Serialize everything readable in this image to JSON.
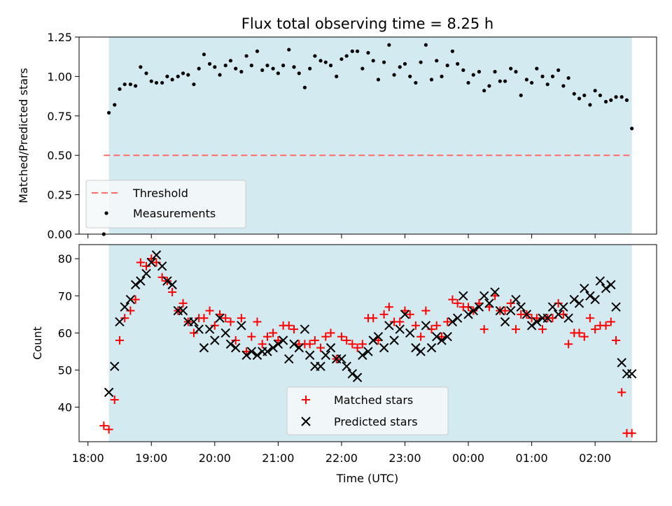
{
  "chart_data": [
    {
      "type": "scatter",
      "title": "Flux total observing time = 8.25 h",
      "ylabel": "Matched/Predicted stars",
      "ylim": [
        0.0,
        1.25
      ],
      "yticks": [
        "0.00",
        "0.25",
        "0.50",
        "0.75",
        "1.00",
        "1.25"
      ],
      "xlim": [
        17.86,
        26.97
      ],
      "grid": false,
      "legend_position": "lower-left",
      "observing_window": {
        "start": 18.33,
        "end": 26.58,
        "color": "#d3eaf0"
      },
      "threshold": {
        "name": "Threshold",
        "value": 0.5,
        "x_start": 18.25,
        "x_end": 26.58,
        "color": "#ff6b6b"
      },
      "series": [
        {
          "name": "Measurements",
          "color": "#000000",
          "x": [
            18.25,
            18.33,
            18.42,
            18.5,
            18.58,
            18.67,
            18.75,
            18.83,
            18.92,
            19.0,
            19.08,
            19.17,
            19.25,
            19.33,
            19.42,
            19.5,
            19.58,
            19.67,
            19.75,
            19.83,
            19.92,
            20.0,
            20.08,
            20.17,
            20.25,
            20.33,
            20.42,
            20.5,
            20.58,
            20.67,
            20.75,
            20.83,
            20.92,
            21.0,
            21.08,
            21.17,
            21.25,
            21.33,
            21.42,
            21.5,
            21.58,
            21.67,
            21.75,
            21.83,
            21.92,
            22.0,
            22.08,
            22.17,
            22.25,
            22.33,
            22.42,
            22.5,
            22.58,
            22.67,
            22.75,
            22.83,
            22.92,
            23.0,
            23.08,
            23.17,
            23.25,
            23.33,
            23.42,
            23.5,
            23.58,
            23.67,
            23.75,
            23.83,
            23.92,
            24.0,
            24.08,
            24.17,
            24.25,
            24.33,
            24.42,
            24.5,
            24.58,
            24.67,
            24.75,
            24.83,
            24.92,
            25.0,
            25.08,
            25.17,
            25.25,
            25.33,
            25.42,
            25.5,
            25.58,
            25.67,
            25.75,
            25.83,
            25.92,
            26.0,
            26.08,
            26.17,
            26.25,
            26.33,
            26.42,
            26.5,
            26.58
          ],
          "y": [
            0.0,
            0.77,
            0.82,
            0.92,
            0.95,
            0.95,
            0.94,
            1.06,
            1.02,
            0.97,
            0.96,
            0.96,
            1.0,
            0.98,
            1.0,
            1.02,
            1.01,
            0.95,
            1.05,
            1.14,
            1.08,
            1.06,
            1.01,
            1.07,
            1.1,
            1.05,
            1.03,
            1.13,
            1.07,
            1.16,
            1.04,
            1.07,
            1.05,
            1.02,
            1.07,
            1.17,
            1.06,
            1.02,
            0.93,
            1.05,
            1.13,
            1.1,
            1.09,
            1.07,
            1.0,
            1.11,
            1.13,
            1.16,
            1.16,
            1.05,
            1.15,
            1.1,
            0.98,
            1.09,
            1.2,
            1.01,
            1.06,
            1.08,
            1.0,
            0.96,
            1.09,
            1.2,
            0.98,
            1.1,
            1.0,
            1.07,
            1.16,
            1.08,
            1.04,
            0.96,
            1.01,
            1.03,
            0.91,
            0.94,
            1.03,
            0.97,
            0.97,
            1.05,
            1.03,
            0.88,
            0.98,
            0.96,
            1.05,
            1.0,
            0.95,
            1.0,
            1.04,
            0.94,
            0.99,
            0.89,
            0.86,
            0.88,
            0.82,
            0.91,
            0.88,
            0.84,
            0.85,
            0.87,
            0.87,
            0.85,
            0.67
          ]
        }
      ]
    },
    {
      "type": "scatter",
      "xlabel": "Time (UTC)",
      "ylabel": "Count",
      "ylim": [
        30.7,
        83.8
      ],
      "yticks": [
        "40",
        "50",
        "60",
        "70",
        "80"
      ],
      "xlim": [
        17.86,
        26.97
      ],
      "xticks": [
        "18:00",
        "19:00",
        "20:00",
        "21:00",
        "22:00",
        "23:00",
        "00:00",
        "01:00",
        "02:00"
      ],
      "grid": false,
      "legend_position": "lower-center",
      "observing_window": {
        "start": 18.33,
        "end": 26.58,
        "color": "#d3eaf0"
      },
      "series": [
        {
          "name": "Matched stars",
          "marker": "+",
          "color": "#ff0000",
          "x": [
            18.25,
            18.33,
            18.42,
            18.5,
            18.58,
            18.67,
            18.75,
            18.83,
            18.92,
            19.0,
            19.08,
            19.17,
            19.25,
            19.33,
            19.42,
            19.5,
            19.58,
            19.67,
            19.75,
            19.83,
            19.92,
            20.0,
            20.08,
            20.17,
            20.25,
            20.33,
            20.42,
            20.5,
            20.58,
            20.67,
            20.75,
            20.83,
            20.92,
            21.0,
            21.08,
            21.17,
            21.25,
            21.33,
            21.42,
            21.5,
            21.58,
            21.67,
            21.75,
            21.83,
            21.92,
            22.0,
            22.08,
            22.17,
            22.25,
            22.33,
            22.42,
            22.5,
            22.58,
            22.67,
            22.75,
            22.83,
            22.92,
            23.0,
            23.08,
            23.17,
            23.25,
            23.33,
            23.42,
            23.5,
            23.58,
            23.67,
            23.75,
            23.83,
            23.92,
            24.0,
            24.08,
            24.17,
            24.25,
            24.33,
            24.42,
            24.5,
            24.58,
            24.67,
            24.75,
            24.83,
            24.92,
            25.0,
            25.08,
            25.17,
            25.25,
            25.33,
            25.42,
            25.5,
            25.58,
            25.67,
            25.75,
            25.83,
            25.92,
            26.0,
            26.08,
            26.17,
            26.25,
            26.33,
            26.42,
            26.5,
            26.58
          ],
          "y": [
            35,
            34,
            42,
            58,
            64,
            66,
            69,
            79,
            78,
            80,
            79,
            75,
            74,
            71,
            66,
            68,
            63,
            60,
            64,
            64,
            66,
            62,
            65,
            64,
            63,
            58,
            64,
            55,
            59,
            63,
            57,
            59,
            60,
            58,
            62,
            62,
            61,
            57,
            57,
            57,
            58,
            56,
            59,
            60,
            53,
            59,
            58,
            57,
            56,
            57,
            64,
            64,
            58,
            65,
            67,
            63,
            63,
            66,
            65,
            62,
            59,
            66,
            61,
            62,
            59,
            63,
            69,
            68,
            67,
            67,
            66,
            68,
            61,
            67,
            70,
            66,
            66,
            68,
            61,
            65,
            65,
            64,
            64,
            61,
            64,
            64,
            68,
            65,
            57,
            60,
            60,
            59,
            64,
            61,
            62,
            62,
            63,
            58,
            44,
            33,
            33
          ]
        },
        {
          "name": "Predicted stars",
          "marker": "x",
          "color": "#000000",
          "x": [
            18.33,
            18.42,
            18.5,
            18.58,
            18.67,
            18.75,
            18.83,
            18.92,
            19.0,
            19.08,
            19.17,
            19.25,
            19.33,
            19.42,
            19.5,
            19.58,
            19.67,
            19.75,
            19.83,
            19.92,
            20.0,
            20.08,
            20.17,
            20.25,
            20.33,
            20.42,
            20.5,
            20.58,
            20.67,
            20.75,
            20.83,
            20.92,
            21.0,
            21.08,
            21.17,
            21.25,
            21.33,
            21.42,
            21.5,
            21.58,
            21.67,
            21.75,
            21.83,
            21.92,
            22.0,
            22.08,
            22.17,
            22.25,
            22.33,
            22.42,
            22.5,
            22.58,
            22.67,
            22.75,
            22.83,
            22.92,
            23.0,
            23.08,
            23.17,
            23.25,
            23.33,
            23.42,
            23.5,
            23.58,
            23.67,
            23.75,
            23.83,
            23.92,
            24.0,
            24.08,
            24.17,
            24.25,
            24.33,
            24.42,
            24.5,
            24.58,
            24.67,
            24.75,
            24.83,
            24.92,
            25.0,
            25.08,
            25.17,
            25.25,
            25.33,
            25.42,
            25.5,
            25.58,
            25.67,
            25.75,
            25.83,
            25.92,
            26.0,
            26.08,
            26.17,
            26.25,
            26.33,
            26.42,
            26.5,
            26.58
          ],
          "y": [
            44,
            51,
            63,
            67,
            69,
            73,
            74,
            76,
            79,
            81,
            78,
            74,
            73,
            66,
            66,
            63,
            63,
            61,
            56,
            61,
            58,
            64,
            60,
            57,
            56,
            62,
            54,
            55,
            54,
            55,
            55,
            56,
            57,
            58,
            53,
            57,
            56,
            61,
            54,
            51,
            51,
            54,
            56,
            53,
            53,
            51,
            49,
            48,
            54,
            55,
            58,
            59,
            56,
            62,
            58,
            61,
            65,
            60,
            56,
            55,
            62,
            56,
            59,
            58,
            59,
            63,
            64,
            70,
            65,
            66,
            67,
            70,
            68,
            71,
            66,
            63,
            66,
            69,
            67,
            65,
            62,
            63,
            64,
            64,
            67,
            65,
            67,
            64,
            69,
            68,
            72,
            70,
            69,
            74,
            72,
            73,
            67,
            52,
            49,
            49
          ]
        }
      ]
    }
  ]
}
